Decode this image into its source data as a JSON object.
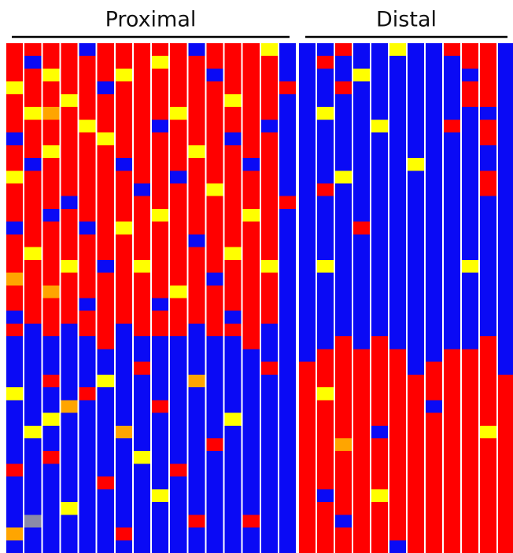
{
  "chart_data": {
    "type": "heatmap",
    "colors": [
      "#0a0af5",
      "#8a8aa8",
      "#ffff00",
      "#ffa500",
      "#ff0000"
    ],
    "groups": [
      {
        "label": "Proximal",
        "columns": [
          [
            4,
            4,
            4,
            2,
            4,
            4,
            4,
            0,
            4,
            4,
            2,
            4,
            4,
            4,
            0,
            4,
            4,
            4,
            3,
            4,
            4,
            0,
            4,
            0,
            0,
            0,
            0,
            2,
            0,
            0,
            0,
            0,
            0,
            4,
            0,
            0,
            0,
            0,
            3,
            0
          ],
          [
            4,
            0,
            4,
            4,
            4,
            2,
            4,
            4,
            4,
            0,
            4,
            4,
            4,
            4,
            4,
            4,
            2,
            4,
            4,
            4,
            4,
            4,
            0,
            0,
            0,
            0,
            0,
            0,
            0,
            0,
            2,
            0,
            0,
            0,
            0,
            0,
            0,
            1,
            0,
            0
          ],
          [
            4,
            4,
            2,
            4,
            4,
            3,
            4,
            4,
            2,
            4,
            4,
            4,
            4,
            0,
            4,
            4,
            4,
            4,
            4,
            3,
            4,
            4,
            4,
            0,
            0,
            0,
            4,
            0,
            0,
            2,
            0,
            0,
            4,
            0,
            0,
            0,
            0,
            0,
            0,
            0
          ],
          [
            4,
            4,
            4,
            4,
            2,
            4,
            4,
            4,
            4,
            4,
            4,
            4,
            0,
            4,
            4,
            4,
            4,
            2,
            4,
            4,
            4,
            4,
            0,
            0,
            0,
            0,
            0,
            0,
            3,
            0,
            0,
            0,
            0,
            0,
            0,
            0,
            2,
            0,
            0,
            0
          ],
          [
            0,
            4,
            4,
            4,
            4,
            4,
            2,
            4,
            4,
            4,
            4,
            4,
            4,
            4,
            0,
            4,
            4,
            4,
            4,
            4,
            0,
            4,
            4,
            0,
            0,
            0,
            0,
            4,
            0,
            0,
            0,
            0,
            0,
            0,
            0,
            0,
            0,
            0,
            0,
            0
          ],
          [
            4,
            4,
            4,
            0,
            4,
            4,
            4,
            2,
            4,
            4,
            4,
            4,
            4,
            4,
            4,
            4,
            4,
            0,
            4,
            4,
            4,
            4,
            4,
            4,
            0,
            0,
            2,
            0,
            0,
            0,
            0,
            0,
            0,
            0,
            4,
            0,
            0,
            0,
            0,
            0
          ],
          [
            4,
            4,
            2,
            4,
            4,
            4,
            4,
            4,
            4,
            0,
            4,
            4,
            4,
            4,
            2,
            4,
            4,
            4,
            4,
            4,
            4,
            4,
            0,
            0,
            0,
            0,
            0,
            0,
            0,
            0,
            3,
            0,
            0,
            0,
            0,
            0,
            0,
            0,
            4,
            0
          ],
          [
            4,
            4,
            4,
            4,
            4,
            4,
            4,
            4,
            4,
            4,
            4,
            0,
            4,
            4,
            4,
            4,
            4,
            2,
            4,
            4,
            4,
            4,
            4,
            0,
            0,
            4,
            0,
            0,
            0,
            0,
            0,
            0,
            2,
            0,
            0,
            0,
            0,
            0,
            0,
            0
          ],
          [
            4,
            2,
            4,
            4,
            4,
            4,
            0,
            4,
            4,
            4,
            4,
            4,
            4,
            2,
            4,
            4,
            4,
            4,
            4,
            4,
            0,
            4,
            4,
            0,
            0,
            0,
            0,
            0,
            4,
            0,
            0,
            0,
            0,
            0,
            0,
            2,
            0,
            0,
            0,
            0
          ],
          [
            4,
            4,
            4,
            4,
            4,
            2,
            4,
            4,
            4,
            4,
            0,
            4,
            4,
            4,
            4,
            4,
            4,
            4,
            4,
            2,
            4,
            4,
            4,
            0,
            0,
            0,
            0,
            0,
            0,
            0,
            0,
            0,
            0,
            4,
            0,
            0,
            0,
            0,
            0,
            0
          ],
          [
            0,
            4,
            4,
            4,
            4,
            4,
            4,
            4,
            2,
            4,
            4,
            4,
            4,
            4,
            4,
            0,
            4,
            4,
            4,
            4,
            4,
            4,
            0,
            0,
            0,
            0,
            3,
            0,
            0,
            0,
            0,
            0,
            0,
            0,
            0,
            0,
            0,
            4,
            0,
            0
          ],
          [
            4,
            4,
            0,
            4,
            4,
            4,
            4,
            4,
            4,
            4,
            4,
            2,
            4,
            4,
            4,
            4,
            4,
            4,
            0,
            4,
            4,
            4,
            4,
            0,
            0,
            0,
            0,
            0,
            0,
            0,
            0,
            4,
            0,
            0,
            0,
            0,
            0,
            0,
            0,
            0
          ],
          [
            4,
            4,
            4,
            4,
            2,
            4,
            4,
            0,
            4,
            4,
            4,
            4,
            4,
            4,
            4,
            4,
            2,
            4,
            4,
            4,
            4,
            0,
            4,
            0,
            0,
            0,
            0,
            0,
            0,
            2,
            0,
            0,
            0,
            0,
            0,
            0,
            0,
            0,
            0,
            0
          ],
          [
            4,
            4,
            4,
            4,
            4,
            4,
            4,
            4,
            4,
            0,
            4,
            4,
            4,
            2,
            4,
            4,
            4,
            4,
            4,
            4,
            4,
            4,
            4,
            4,
            0,
            0,
            0,
            0,
            0,
            0,
            0,
            0,
            0,
            0,
            0,
            0,
            0,
            4,
            0,
            0
          ],
          [
            2,
            4,
            4,
            4,
            4,
            4,
            0,
            4,
            4,
            4,
            4,
            4,
            4,
            4,
            4,
            4,
            4,
            2,
            4,
            4,
            4,
            4,
            0,
            0,
            0,
            4,
            0,
            0,
            0,
            0,
            0,
            0,
            0,
            0,
            0,
            0,
            0,
            0,
            0,
            0
          ],
          [
            0,
            0,
            0,
            4,
            0,
            0,
            0,
            0,
            0,
            0,
            0,
            0,
            4,
            0,
            0,
            0,
            0,
            0,
            0,
            0,
            0,
            0,
            0,
            0,
            0,
            0,
            0,
            0,
            0,
            0,
            0,
            0,
            0,
            0,
            0,
            0,
            0,
            0,
            0,
            0
          ]
        ]
      },
      {
        "label": "Distal",
        "columns": [
          [
            0,
            0,
            0,
            0,
            0,
            0,
            0,
            0,
            0,
            0,
            0,
            0,
            0,
            0,
            0,
            0,
            0,
            0,
            0,
            0,
            0,
            0,
            0,
            0,
            0,
            4,
            4,
            4,
            4,
            4,
            4,
            4,
            4,
            4,
            4,
            4,
            4,
            4,
            4,
            4
          ],
          [
            0,
            4,
            0,
            0,
            0,
            2,
            0,
            0,
            0,
            0,
            0,
            4,
            0,
            0,
            0,
            0,
            0,
            2,
            0,
            0,
            0,
            0,
            0,
            0,
            4,
            4,
            4,
            2,
            4,
            4,
            4,
            4,
            4,
            4,
            4,
            0,
            4,
            4,
            4,
            4
          ],
          [
            4,
            0,
            0,
            4,
            0,
            0,
            0,
            0,
            0,
            0,
            2,
            0,
            0,
            0,
            0,
            0,
            0,
            0,
            0,
            0,
            0,
            0,
            0,
            4,
            4,
            4,
            4,
            4,
            4,
            4,
            4,
            3,
            4,
            4,
            4,
            4,
            4,
            0,
            4,
            4
          ],
          [
            0,
            0,
            2,
            0,
            0,
            0,
            0,
            0,
            0,
            0,
            0,
            0,
            0,
            0,
            4,
            0,
            0,
            0,
            0,
            0,
            0,
            0,
            0,
            0,
            4,
            4,
            4,
            4,
            4,
            4,
            4,
            4,
            4,
            4,
            4,
            4,
            4,
            4,
            4,
            4
          ],
          [
            0,
            0,
            0,
            0,
            0,
            0,
            2,
            0,
            0,
            0,
            0,
            0,
            0,
            0,
            0,
            0,
            0,
            0,
            0,
            0,
            0,
            0,
            0,
            4,
            4,
            4,
            4,
            4,
            4,
            4,
            0,
            4,
            4,
            4,
            4,
            2,
            4,
            4,
            4,
            4
          ],
          [
            2,
            0,
            0,
            0,
            0,
            0,
            0,
            0,
            0,
            0,
            0,
            0,
            0,
            0,
            0,
            0,
            0,
            0,
            0,
            0,
            0,
            0,
            0,
            0,
            4,
            4,
            4,
            4,
            4,
            4,
            4,
            4,
            4,
            4,
            4,
            4,
            4,
            4,
            4,
            0
          ],
          [
            0,
            0,
            0,
            0,
            0,
            0,
            0,
            0,
            0,
            2,
            0,
            0,
            0,
            0,
            0,
            0,
            0,
            0,
            0,
            0,
            0,
            0,
            0,
            0,
            0,
            0,
            4,
            4,
            4,
            4,
            4,
            4,
            4,
            4,
            4,
            4,
            4,
            4,
            4,
            4
          ],
          [
            0,
            0,
            0,
            0,
            0,
            0,
            0,
            0,
            0,
            0,
            0,
            0,
            0,
            0,
            0,
            0,
            0,
            0,
            0,
            0,
            0,
            0,
            0,
            0,
            0,
            4,
            4,
            4,
            0,
            4,
            4,
            4,
            4,
            4,
            4,
            4,
            4,
            4,
            4,
            4
          ],
          [
            4,
            0,
            0,
            0,
            0,
            0,
            4,
            0,
            0,
            0,
            0,
            0,
            0,
            0,
            0,
            0,
            0,
            0,
            0,
            0,
            0,
            0,
            0,
            0,
            4,
            4,
            4,
            4,
            4,
            4,
            4,
            4,
            4,
            4,
            4,
            4,
            4,
            4,
            4,
            4
          ],
          [
            4,
            4,
            0,
            4,
            4,
            0,
            0,
            0,
            0,
            0,
            0,
            0,
            0,
            0,
            0,
            0,
            0,
            2,
            0,
            0,
            0,
            0,
            0,
            0,
            4,
            4,
            4,
            4,
            4,
            4,
            4,
            4,
            4,
            4,
            4,
            4,
            4,
            4,
            4,
            4
          ],
          [
            4,
            4,
            4,
            4,
            4,
            0,
            4,
            4,
            0,
            0,
            4,
            4,
            0,
            0,
            0,
            0,
            0,
            0,
            0,
            0,
            0,
            0,
            0,
            4,
            4,
            4,
            4,
            4,
            4,
            4,
            2,
            4,
            4,
            4,
            4,
            4,
            4,
            4,
            4,
            4
          ],
          [
            0,
            0,
            0,
            0,
            0,
            0,
            0,
            0,
            0,
            0,
            0,
            0,
            0,
            0,
            0,
            0,
            0,
            0,
            0,
            0,
            0,
            0,
            0,
            0,
            0,
            0,
            4,
            4,
            4,
            4,
            4,
            4,
            4,
            4,
            4,
            4,
            4,
            4,
            4,
            4
          ]
        ]
      }
    ]
  }
}
